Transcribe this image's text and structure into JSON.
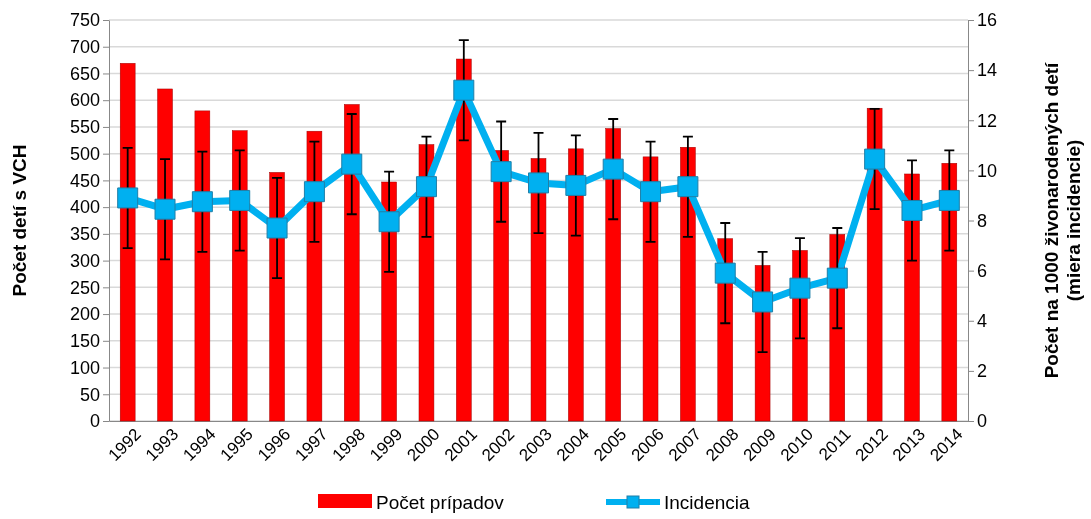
{
  "chart_data": {
    "type": "bar",
    "ylabel": "Počet detí s VCH",
    "y2label": "Počet na 1000 živonarodených detí\n(miera incidencie)",
    "categories": [
      "1992",
      "1993",
      "1994",
      "1995",
      "1996",
      "1997",
      "1998",
      "1999",
      "2000",
      "2001",
      "2002",
      "2003",
      "2004",
      "2005",
      "2006",
      "2007",
      "2008",
      "2009",
      "2010",
      "2011",
      "2012",
      "2013",
      "2014"
    ],
    "series": [
      {
        "name": "Počet prípadov",
        "color": "#ff0000",
        "values": [
          669,
          621,
          580,
          543,
          465,
          542,
          592,
          447,
          517,
          677,
          506,
          491,
          509,
          547,
          494,
          512,
          341,
          291,
          319,
          349,
          585,
          462,
          482
        ]
      },
      {
        "name": "Incidencia",
        "type": "line",
        "axis": "y2",
        "color": "#00b0f0",
        "marker": "square",
        "values": [
          8.9,
          8.45,
          8.75,
          8.8,
          7.7,
          9.15,
          10.25,
          7.95,
          9.35,
          13.2,
          9.95,
          9.5,
          9.4,
          10.05,
          9.15,
          9.35,
          5.9,
          4.75,
          5.3,
          5.7,
          10.45,
          8.4,
          8.8
        ],
        "errors": [
          2,
          2,
          2,
          2,
          2,
          2,
          2,
          2,
          2,
          2,
          2,
          2,
          2,
          2,
          2,
          2,
          2,
          2,
          2,
          2,
          2,
          2,
          2
        ]
      }
    ],
    "ylim": [
      0,
      750
    ],
    "yticks": [
      0,
      50,
      100,
      150,
      200,
      250,
      300,
      350,
      400,
      450,
      500,
      550,
      600,
      650,
      700,
      750
    ],
    "y2lim": [
      0,
      16
    ],
    "y2ticks": [
      0,
      2,
      4,
      6,
      8,
      10,
      12,
      14,
      16
    ],
    "grid": "y",
    "legend": "bottom"
  }
}
